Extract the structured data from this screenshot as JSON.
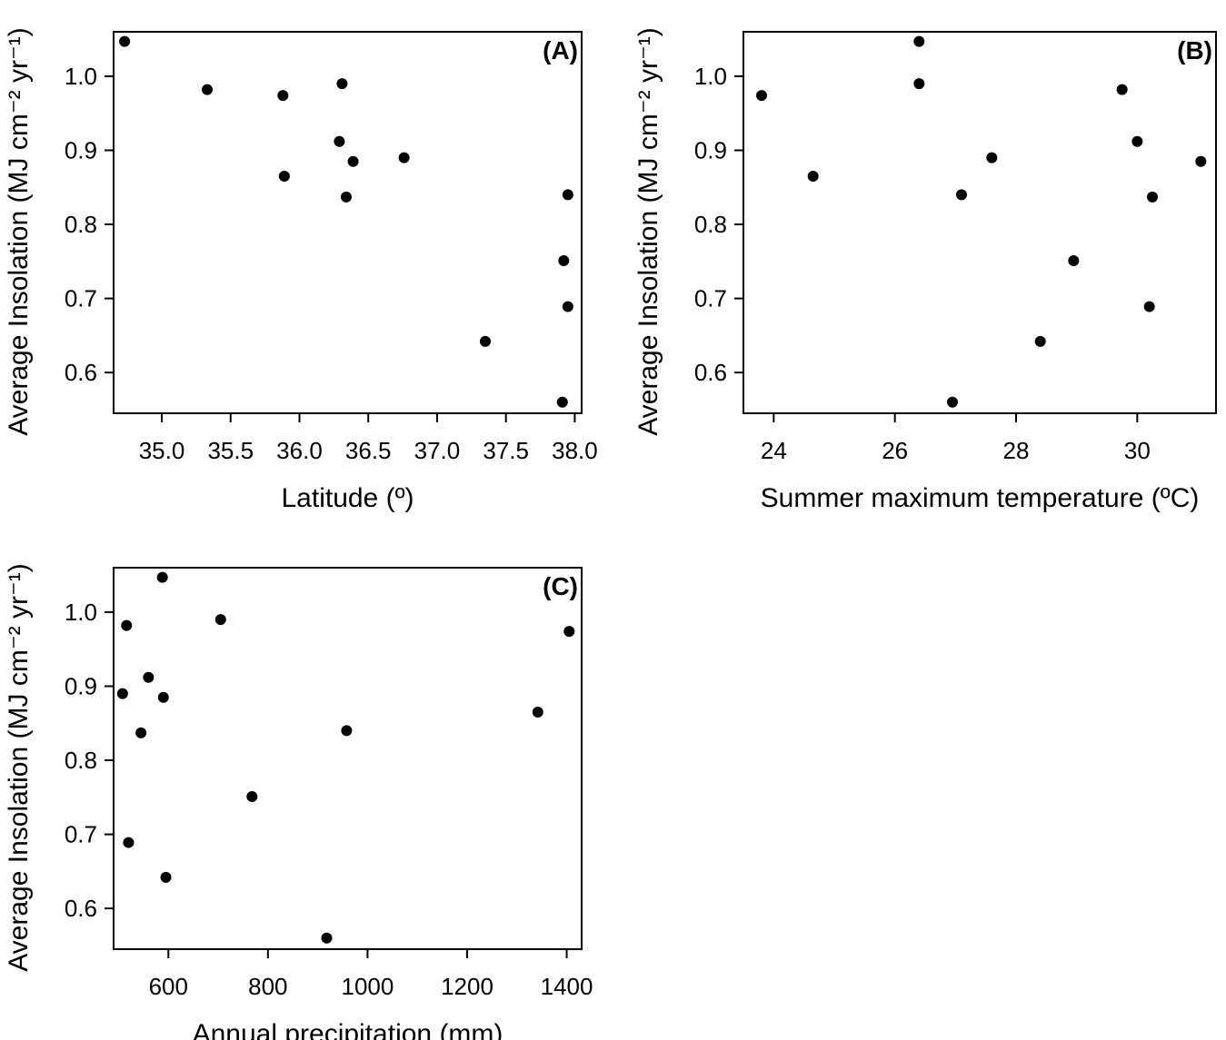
{
  "chart_data": [
    {
      "type": "scatter",
      "panel": "(A)",
      "xlabel": "Latitude (º)",
      "ylabel": "Average Insolation (MJ cm⁻² yr⁻¹)",
      "xlim": [
        34.65,
        38.05
      ],
      "ylim": [
        0.545,
        1.06
      ],
      "xticks": [
        35.0,
        35.5,
        36.0,
        36.5,
        37.0,
        37.5,
        38.0
      ],
      "xtick_labels": [
        "35.0",
        "35.5",
        "36.0",
        "36.5",
        "37.0",
        "37.5",
        "38.0"
      ],
      "yticks": [
        0.6,
        0.7,
        0.8,
        0.9,
        1.0
      ],
      "ytick_labels": [
        "0.6",
        "0.7",
        "0.8",
        "0.9",
        "1.0"
      ],
      "grid": false,
      "points": [
        {
          "x": 34.73,
          "y": 1.047
        },
        {
          "x": 35.33,
          "y": 0.982
        },
        {
          "x": 35.88,
          "y": 0.974
        },
        {
          "x": 35.89,
          "y": 0.865
        },
        {
          "x": 36.31,
          "y": 0.99
        },
        {
          "x": 36.29,
          "y": 0.912
        },
        {
          "x": 36.34,
          "y": 0.837
        },
        {
          "x": 36.39,
          "y": 0.885
        },
        {
          "x": 36.76,
          "y": 0.89
        },
        {
          "x": 37.35,
          "y": 0.642
        },
        {
          "x": 37.95,
          "y": 0.84
        },
        {
          "x": 37.92,
          "y": 0.751
        },
        {
          "x": 37.95,
          "y": 0.689
        },
        {
          "x": 37.91,
          "y": 0.56
        }
      ]
    },
    {
      "type": "scatter",
      "panel": "(B)",
      "xlabel": "Summer maximum temperature (ºC)",
      "ylabel": "Average Insolation (MJ cm⁻² yr⁻¹)",
      "xlim": [
        23.5,
        31.3
      ],
      "ylim": [
        0.545,
        1.06
      ],
      "xticks": [
        24,
        26,
        28,
        30
      ],
      "xtick_labels": [
        "24",
        "26",
        "28",
        "30"
      ],
      "yticks": [
        0.6,
        0.7,
        0.8,
        0.9,
        1.0
      ],
      "ytick_labels": [
        "0.6",
        "0.7",
        "0.8",
        "0.9",
        "1.0"
      ],
      "grid": false,
      "points": [
        {
          "x": 23.8,
          "y": 0.974
        },
        {
          "x": 24.65,
          "y": 0.865
        },
        {
          "x": 26.4,
          "y": 1.047
        },
        {
          "x": 26.4,
          "y": 0.99
        },
        {
          "x": 26.95,
          "y": 0.56
        },
        {
          "x": 27.1,
          "y": 0.84
        },
        {
          "x": 27.6,
          "y": 0.89
        },
        {
          "x": 28.4,
          "y": 0.642
        },
        {
          "x": 28.95,
          "y": 0.751
        },
        {
          "x": 29.75,
          "y": 0.982
        },
        {
          "x": 30.0,
          "y": 0.912
        },
        {
          "x": 30.25,
          "y": 0.837
        },
        {
          "x": 30.2,
          "y": 0.689
        },
        {
          "x": 31.05,
          "y": 0.885
        }
      ]
    },
    {
      "type": "scatter",
      "panel": "(C)",
      "xlabel": "Annual precipitation (mm)",
      "ylabel": "Average Insolation (MJ cm⁻² yr⁻¹)",
      "xlim": [
        490,
        1430
      ],
      "ylim": [
        0.545,
        1.06
      ],
      "xticks": [
        600,
        800,
        1000,
        1200,
        1400
      ],
      "xtick_labels": [
        "600",
        "800",
        "1000",
        "1200",
        "1400"
      ],
      "yticks": [
        0.6,
        0.7,
        0.8,
        0.9,
        1.0
      ],
      "ytick_labels": [
        "0.6",
        "0.7",
        "0.8",
        "0.9",
        "1.0"
      ],
      "grid": false,
      "points": [
        {
          "x": 508,
          "y": 0.89
        },
        {
          "x": 516,
          "y": 0.982
        },
        {
          "x": 520,
          "y": 0.689
        },
        {
          "x": 545,
          "y": 0.837
        },
        {
          "x": 560,
          "y": 0.912
        },
        {
          "x": 588,
          "y": 1.047
        },
        {
          "x": 590,
          "y": 0.885
        },
        {
          "x": 595,
          "y": 0.642
        },
        {
          "x": 705,
          "y": 0.99
        },
        {
          "x": 768,
          "y": 0.751
        },
        {
          "x": 918,
          "y": 0.56
        },
        {
          "x": 958,
          "y": 0.84
        },
        {
          "x": 1342,
          "y": 0.865
        },
        {
          "x": 1405,
          "y": 0.974
        }
      ]
    }
  ]
}
